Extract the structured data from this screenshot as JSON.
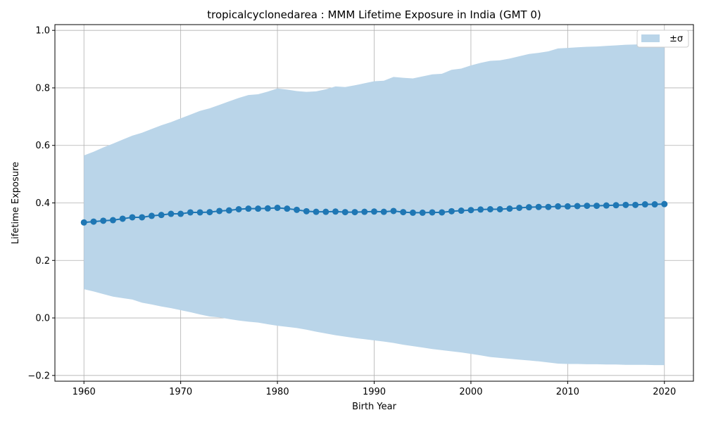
{
  "chart_data": {
    "type": "line",
    "title": "tropicalcyclonedarea : MMM Lifetime Exposure in India (GMT 0)",
    "xlabel": "Birth Year",
    "ylabel": "Lifetime Exposure",
    "xlim": [
      1957,
      2023
    ],
    "ylim": [
      -0.22,
      1.02
    ],
    "xticks": [
      1960,
      1970,
      1980,
      1990,
      2000,
      2010,
      2020
    ],
    "xtick_labels": [
      "1960",
      "1970",
      "1980",
      "1990",
      "2000",
      "2010",
      "2020"
    ],
    "yticks": [
      -0.2,
      0.0,
      0.2,
      0.4,
      0.6,
      0.8,
      1.0
    ],
    "ytick_labels": [
      "−0.2",
      "0.0",
      "0.2",
      "0.4",
      "0.6",
      "0.8",
      "1.0"
    ],
    "grid": true,
    "legend": {
      "position": "top-right",
      "entries": [
        "±σ"
      ]
    },
    "colors": {
      "line": "#1f77b4",
      "band": "#bad5e9",
      "grid": "#b0b0b0"
    },
    "x": [
      1960,
      1961,
      1962,
      1963,
      1964,
      1965,
      1966,
      1967,
      1968,
      1969,
      1970,
      1971,
      1972,
      1973,
      1974,
      1975,
      1976,
      1977,
      1978,
      1979,
      1980,
      1981,
      1982,
      1983,
      1984,
      1985,
      1986,
      1987,
      1988,
      1989,
      1990,
      1991,
      1992,
      1993,
      1994,
      1995,
      1996,
      1997,
      1998,
      1999,
      2000,
      2001,
      2002,
      2003,
      2004,
      2005,
      2006,
      2007,
      2008,
      2009,
      2010,
      2011,
      2012,
      2013,
      2014,
      2015,
      2016,
      2017,
      2018,
      2019,
      2020
    ],
    "series": [
      {
        "values": [
          0.332,
          0.335,
          0.338,
          0.34,
          0.345,
          0.35,
          0.35,
          0.355,
          0.358,
          0.362,
          0.362,
          0.367,
          0.367,
          0.368,
          0.372,
          0.374,
          0.378,
          0.38,
          0.38,
          0.381,
          0.383,
          0.38,
          0.376,
          0.371,
          0.369,
          0.369,
          0.37,
          0.368,
          0.368,
          0.369,
          0.37,
          0.369,
          0.372,
          0.368,
          0.366,
          0.366,
          0.367,
          0.367,
          0.371,
          0.373,
          0.375,
          0.377,
          0.378,
          0.378,
          0.38,
          0.383,
          0.385,
          0.386,
          0.386,
          0.388,
          0.388,
          0.389,
          0.39,
          0.39,
          0.391,
          0.392,
          0.393,
          0.393,
          0.395,
          0.395,
          0.396
        ]
      }
    ],
    "band": {
      "name": "±σ",
      "upper": [
        0.565,
        0.578,
        0.593,
        0.606,
        0.62,
        0.634,
        0.644,
        0.657,
        0.67,
        0.681,
        0.694,
        0.707,
        0.72,
        0.729,
        0.741,
        0.753,
        0.765,
        0.775,
        0.778,
        0.787,
        0.798,
        0.794,
        0.789,
        0.786,
        0.788,
        0.795,
        0.805,
        0.803,
        0.809,
        0.816,
        0.823,
        0.825,
        0.838,
        0.835,
        0.833,
        0.84,
        0.847,
        0.849,
        0.863,
        0.867,
        0.878,
        0.887,
        0.894,
        0.896,
        0.902,
        0.91,
        0.918,
        0.922,
        0.927,
        0.937,
        0.939,
        0.941,
        0.943,
        0.944,
        0.946,
        0.948,
        0.95,
        0.951,
        0.952,
        0.953,
        0.955
      ],
      "lower": [
        0.1,
        0.092,
        0.083,
        0.074,
        0.069,
        0.064,
        0.053,
        0.047,
        0.04,
        0.034,
        0.027,
        0.02,
        0.012,
        0.005,
        0.002,
        -0.004,
        -0.009,
        -0.013,
        -0.016,
        -0.022,
        -0.027,
        -0.031,
        -0.035,
        -0.041,
        -0.048,
        -0.054,
        -0.06,
        -0.065,
        -0.07,
        -0.074,
        -0.078,
        -0.082,
        -0.087,
        -0.093,
        -0.098,
        -0.103,
        -0.108,
        -0.112,
        -0.116,
        -0.12,
        -0.125,
        -0.13,
        -0.136,
        -0.139,
        -0.142,
        -0.145,
        -0.148,
        -0.151,
        -0.155,
        -0.159,
        -0.16,
        -0.16,
        -0.161,
        -0.161,
        -0.162,
        -0.162,
        -0.163,
        -0.163,
        -0.163,
        -0.164,
        -0.164
      ]
    }
  }
}
